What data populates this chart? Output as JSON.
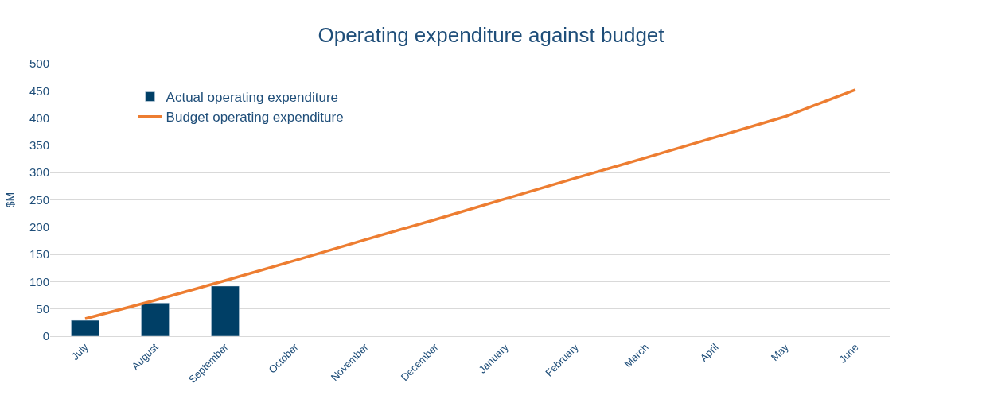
{
  "chart_data": {
    "type": "bar",
    "title": "Operating expenditure against budget",
    "ylabel": "$M",
    "categories": [
      "July",
      "August",
      "September",
      "October",
      "November",
      "December",
      "January",
      "February",
      "March",
      "April",
      "May",
      "June"
    ],
    "series": [
      {
        "name": "Actual operating expenditure",
        "color": "#003f66",
        "values": [
          29,
          61,
          92,
          null,
          null,
          null,
          null,
          null,
          null,
          null,
          null,
          null
        ]
      },
      {
        "name": "Budget operating expenditure",
        "type": "line",
        "color": "#ed7d31",
        "values": [
          32,
          66,
          102,
          139,
          177,
          214,
          252,
          290,
          327,
          365,
          403,
          452
        ]
      }
    ],
    "ylim": [
      0,
      500
    ],
    "yticks": [
      0,
      50,
      100,
      150,
      200,
      250,
      300,
      350,
      400,
      450,
      500
    ],
    "grid": "y",
    "legend": "top left",
    "marker": "none"
  }
}
